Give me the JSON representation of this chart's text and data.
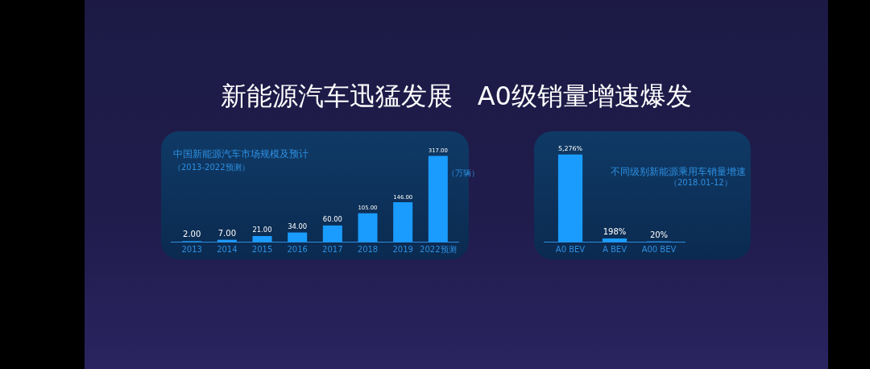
{
  "chart_data": [
    {
      "type": "other",
      "title": "新能源汽车迅猛发展   A0级销量增速爆发"
    },
    {
      "type": "bar",
      "title": "中国新能源汽车市场规模及预计",
      "subtitle": "（2013-2022预测）",
      "annotations": [
        "（万辆）"
      ],
      "categories": [
        "2013",
        "2014",
        "2015",
        "2016",
        "2017",
        "2018",
        "2019",
        "2022预测"
      ],
      "values": [
        2,
        7,
        21,
        34,
        60,
        105,
        146,
        317
      ],
      "value_labels": [
        "2.00",
        "7.00",
        "21.00",
        "34.00",
        "60.00",
        "105.00",
        "146.00",
        "317.00"
      ],
      "color": "#1a9cff",
      "tick_labels": "x"
    },
    {
      "type": "bar",
      "title": "不同级别新能源乘用车销量增速",
      "subtitle": "（2018.01-12）",
      "categories": [
        "A0 BEV",
        "A BEV",
        "A00 BEV"
      ],
      "values": [
        5276,
        198,
        20
      ],
      "value_labels": [
        "5,276%",
        "198%",
        "20%"
      ],
      "color": "#1a9cff",
      "tick_labels": "x"
    }
  ]
}
